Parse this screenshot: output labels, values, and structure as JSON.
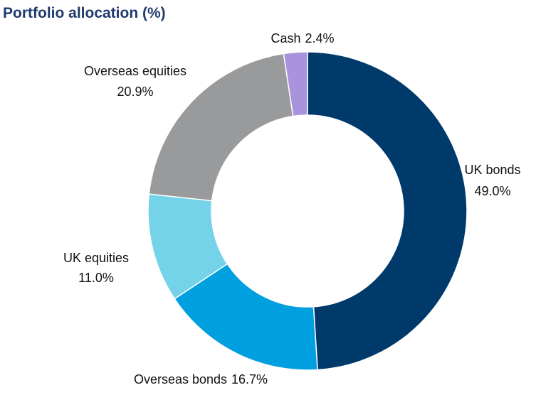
{
  "chart_data": {
    "type": "donut",
    "title": "Portfolio allocation (%)",
    "categories": [
      "UK bonds",
      "Overseas bonds",
      "UK equities",
      "Overseas equities",
      "Cash"
    ],
    "values": [
      49.0,
      16.7,
      11.0,
      20.9,
      2.4
    ],
    "value_labels": [
      "49.0%",
      "16.7%",
      "11.0%",
      "20.9%",
      "2.4%"
    ],
    "colors": [
      "#003a6b",
      "#00a0e0",
      "#74d3e8",
      "#999a9c",
      "#a993dc"
    ]
  }
}
